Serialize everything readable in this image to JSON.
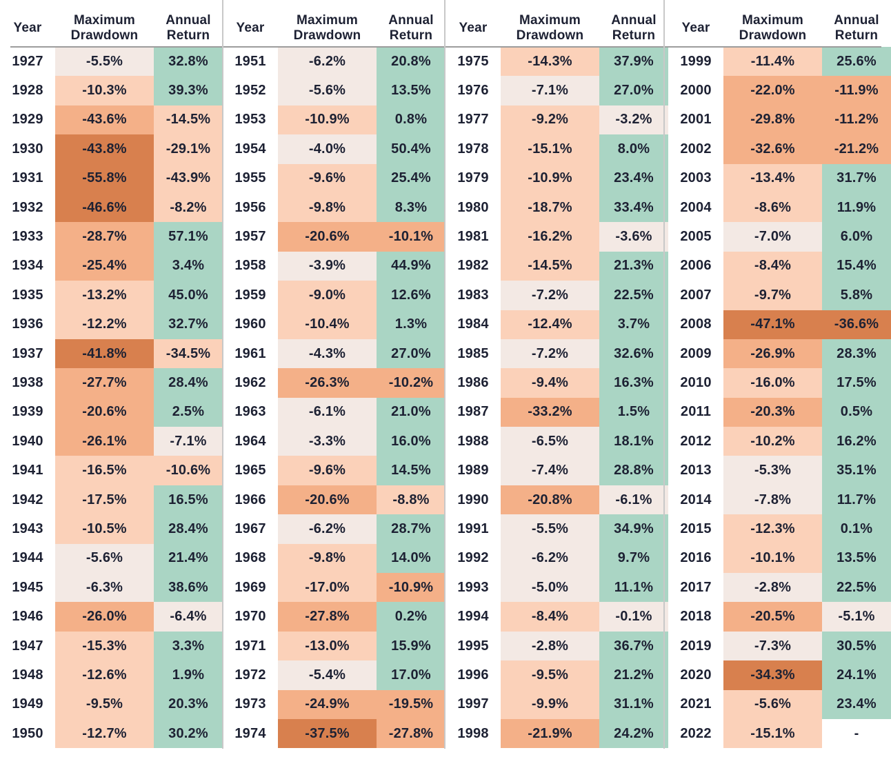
{
  "palette": {
    "L0": "#f3e9e4",
    "L1": "#fbd1b9",
    "L2": "#f4b088",
    "L3": "#d8804e",
    "G": "#aad5c4",
    "W": "#ffffff",
    "text": "#1d2133",
    "group_divider": "#c8c8c8",
    "header_divider": "#9c9c9c"
  },
  "header": {
    "year": "Year",
    "max_drawdown": "Maximum Drawdown",
    "annual_return": "Annual Return"
  },
  "missing_value": "-",
  "chart_data": {
    "type": "heatmap",
    "title": "",
    "columns": [
      "Year",
      "Maximum Drawdown",
      "Annual Return"
    ],
    "layout": {
      "group_count": 4,
      "rows_per_group": 24,
      "year_range": [
        1927,
        2022
      ]
    },
    "rows": [
      [
        1927,
        -5.5,
        32.8
      ],
      [
        1928,
        -10.3,
        39.3
      ],
      [
        1929,
        -43.6,
        -14.5
      ],
      [
        1930,
        -43.8,
        -29.1
      ],
      [
        1931,
        -55.8,
        -43.9
      ],
      [
        1932,
        -46.6,
        -8.2
      ],
      [
        1933,
        -28.7,
        57.1
      ],
      [
        1934,
        -25.4,
        3.4
      ],
      [
        1935,
        -13.2,
        45.0
      ],
      [
        1936,
        -12.2,
        32.7
      ],
      [
        1937,
        -41.8,
        -34.5
      ],
      [
        1938,
        -27.7,
        28.4
      ],
      [
        1939,
        -20.6,
        2.5
      ],
      [
        1940,
        -26.1,
        -7.1
      ],
      [
        1941,
        -16.5,
        -10.6
      ],
      [
        1942,
        -17.5,
        16.5
      ],
      [
        1943,
        -10.5,
        28.4
      ],
      [
        1944,
        -5.6,
        21.4
      ],
      [
        1945,
        -6.3,
        38.6
      ],
      [
        1946,
        -26.0,
        -6.4
      ],
      [
        1947,
        -15.3,
        3.3
      ],
      [
        1948,
        -12.6,
        1.9
      ],
      [
        1949,
        -9.5,
        20.3
      ],
      [
        1950,
        -12.7,
        30.2
      ],
      [
        1951,
        -6.2,
        20.8
      ],
      [
        1952,
        -5.6,
        13.5
      ],
      [
        1953,
        -10.9,
        0.8
      ],
      [
        1954,
        -4.0,
        50.4
      ],
      [
        1955,
        -9.6,
        25.4
      ],
      [
        1956,
        -9.8,
        8.3
      ],
      [
        1957,
        -20.6,
        -10.1
      ],
      [
        1958,
        -3.9,
        44.9
      ],
      [
        1959,
        -9.0,
        12.6
      ],
      [
        1960,
        -10.4,
        1.3
      ],
      [
        1961,
        -4.3,
        27.0
      ],
      [
        1962,
        -26.3,
        -10.2
      ],
      [
        1963,
        -6.1,
        21.0
      ],
      [
        1964,
        -3.3,
        16.0
      ],
      [
        1965,
        -9.6,
        14.5
      ],
      [
        1966,
        -20.6,
        -8.8
      ],
      [
        1967,
        -6.2,
        28.7
      ],
      [
        1968,
        -9.8,
        14.0
      ],
      [
        1969,
        -17.0,
        -10.9
      ],
      [
        1970,
        -27.8,
        0.2
      ],
      [
        1971,
        -13.0,
        15.9
      ],
      [
        1972,
        -5.4,
        17.0
      ],
      [
        1973,
        -24.9,
        -19.5
      ],
      [
        1974,
        -37.5,
        -27.8
      ],
      [
        1975,
        -14.3,
        37.9
      ],
      [
        1976,
        -7.1,
        27.0
      ],
      [
        1977,
        -9.2,
        -3.2
      ],
      [
        1978,
        -15.1,
        8.0
      ],
      [
        1979,
        -10.9,
        23.4
      ],
      [
        1980,
        -18.7,
        33.4
      ],
      [
        1981,
        -16.2,
        -3.6
      ],
      [
        1982,
        -14.5,
        21.3
      ],
      [
        1983,
        -7.2,
        22.5
      ],
      [
        1984,
        -12.4,
        3.7
      ],
      [
        1985,
        -7.2,
        32.6
      ],
      [
        1986,
        -9.4,
        16.3
      ],
      [
        1987,
        -33.2,
        1.5
      ],
      [
        1988,
        -6.5,
        18.1
      ],
      [
        1989,
        -7.4,
        28.8
      ],
      [
        1990,
        -20.8,
        -6.1
      ],
      [
        1991,
        -5.5,
        34.9
      ],
      [
        1992,
        -6.2,
        9.7
      ],
      [
        1993,
        -5.0,
        11.1
      ],
      [
        1994,
        -8.4,
        -0.1
      ],
      [
        1995,
        -2.8,
        36.7
      ],
      [
        1996,
        -9.5,
        21.2
      ],
      [
        1997,
        -9.9,
        31.1
      ],
      [
        1998,
        -21.9,
        24.2
      ],
      [
        1999,
        -11.4,
        25.6
      ],
      [
        2000,
        -22.0,
        -11.9
      ],
      [
        2001,
        -29.8,
        -11.2
      ],
      [
        2002,
        -32.6,
        -21.2
      ],
      [
        2003,
        -13.4,
        31.7
      ],
      [
        2004,
        -8.6,
        11.9
      ],
      [
        2005,
        -7.0,
        6.0
      ],
      [
        2006,
        -8.4,
        15.4
      ],
      [
        2007,
        -9.7,
        5.8
      ],
      [
        2008,
        -47.1,
        -36.6
      ],
      [
        2009,
        -26.9,
        28.3
      ],
      [
        2010,
        -16.0,
        17.5
      ],
      [
        2011,
        -20.3,
        0.5
      ],
      [
        2012,
        -10.2,
        16.2
      ],
      [
        2013,
        -5.3,
        35.1
      ],
      [
        2014,
        -7.8,
        11.7
      ],
      [
        2015,
        -12.3,
        0.1
      ],
      [
        2016,
        -10.1,
        13.5
      ],
      [
        2017,
        -2.8,
        22.5
      ],
      [
        2018,
        -20.5,
        -5.1
      ],
      [
        2019,
        -7.3,
        30.5
      ],
      [
        2020,
        -34.3,
        24.1
      ],
      [
        2021,
        -5.6,
        23.4
      ],
      [
        2022,
        -15.1,
        null
      ]
    ],
    "cell_colors": [
      [
        "L0",
        "G"
      ],
      [
        "L1",
        "G"
      ],
      [
        "L2",
        "L1"
      ],
      [
        "L3",
        "L1"
      ],
      [
        "L3",
        "L1"
      ],
      [
        "L3",
        "L1"
      ],
      [
        "L2",
        "G"
      ],
      [
        "L2",
        "G"
      ],
      [
        "L1",
        "G"
      ],
      [
        "L1",
        "G"
      ],
      [
        "L3",
        "L1"
      ],
      [
        "L2",
        "G"
      ],
      [
        "L2",
        "G"
      ],
      [
        "L2",
        "L0"
      ],
      [
        "L1",
        "L1"
      ],
      [
        "L1",
        "G"
      ],
      [
        "L1",
        "G"
      ],
      [
        "L0",
        "G"
      ],
      [
        "L0",
        "G"
      ],
      [
        "L2",
        "L0"
      ],
      [
        "L1",
        "G"
      ],
      [
        "L1",
        "G"
      ],
      [
        "L1",
        "G"
      ],
      [
        "L1",
        "G"
      ],
      [
        "L0",
        "G"
      ],
      [
        "L0",
        "G"
      ],
      [
        "L1",
        "G"
      ],
      [
        "L0",
        "G"
      ],
      [
        "L1",
        "G"
      ],
      [
        "L1",
        "G"
      ],
      [
        "L2",
        "L2"
      ],
      [
        "L0",
        "G"
      ],
      [
        "L1",
        "G"
      ],
      [
        "L1",
        "G"
      ],
      [
        "L0",
        "G"
      ],
      [
        "L2",
        "L2"
      ],
      [
        "L0",
        "G"
      ],
      [
        "L0",
        "G"
      ],
      [
        "L1",
        "G"
      ],
      [
        "L2",
        "L1"
      ],
      [
        "L0",
        "G"
      ],
      [
        "L1",
        "G"
      ],
      [
        "L1",
        "L2"
      ],
      [
        "L2",
        "G"
      ],
      [
        "L1",
        "G"
      ],
      [
        "L0",
        "G"
      ],
      [
        "L2",
        "L2"
      ],
      [
        "L3",
        "L2"
      ],
      [
        "L1",
        "G"
      ],
      [
        "L0",
        "G"
      ],
      [
        "L1",
        "L0"
      ],
      [
        "L1",
        "G"
      ],
      [
        "L1",
        "G"
      ],
      [
        "L1",
        "G"
      ],
      [
        "L1",
        "L0"
      ],
      [
        "L1",
        "G"
      ],
      [
        "L0",
        "G"
      ],
      [
        "L1",
        "G"
      ],
      [
        "L0",
        "G"
      ],
      [
        "L1",
        "G"
      ],
      [
        "L2",
        "G"
      ],
      [
        "L0",
        "G"
      ],
      [
        "L0",
        "G"
      ],
      [
        "L2",
        "L0"
      ],
      [
        "L0",
        "G"
      ],
      [
        "L0",
        "G"
      ],
      [
        "L0",
        "G"
      ],
      [
        "L1",
        "L0"
      ],
      [
        "L0",
        "G"
      ],
      [
        "L1",
        "G"
      ],
      [
        "L1",
        "G"
      ],
      [
        "L2",
        "G"
      ],
      [
        "L1",
        "G"
      ],
      [
        "L2",
        "L2"
      ],
      [
        "L2",
        "L2"
      ],
      [
        "L2",
        "L2"
      ],
      [
        "L1",
        "G"
      ],
      [
        "L1",
        "G"
      ],
      [
        "L0",
        "G"
      ],
      [
        "L1",
        "G"
      ],
      [
        "L1",
        "G"
      ],
      [
        "L3",
        "L3"
      ],
      [
        "L2",
        "G"
      ],
      [
        "L1",
        "G"
      ],
      [
        "L2",
        "G"
      ],
      [
        "L1",
        "G"
      ],
      [
        "L0",
        "G"
      ],
      [
        "L0",
        "G"
      ],
      [
        "L1",
        "G"
      ],
      [
        "L1",
        "G"
      ],
      [
        "L0",
        "G"
      ],
      [
        "L2",
        "L0"
      ],
      [
        "L0",
        "G"
      ],
      [
        "L3",
        "G"
      ],
      [
        "L1",
        "G"
      ],
      [
        "L1",
        "W"
      ]
    ]
  }
}
